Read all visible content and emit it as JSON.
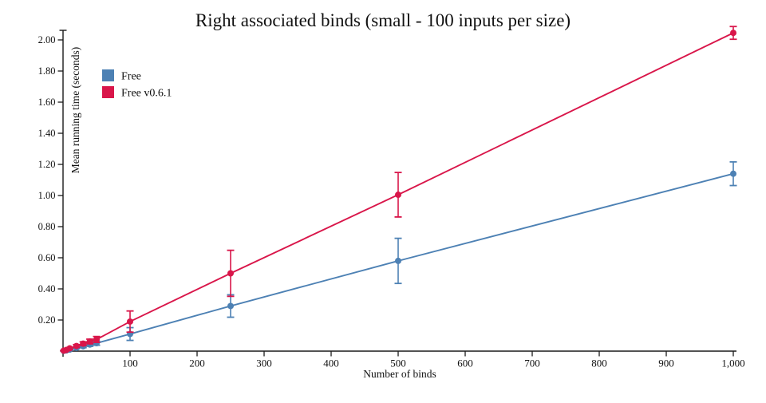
{
  "title": "Right associated binds (small - 100 inputs per size)",
  "colors": {
    "axis": "#1a1a1a",
    "background": "#ffffff",
    "series_free": "#4d81b4",
    "series_free_v061": "#d9164a"
  },
  "legend": {
    "items": [
      {
        "label": "Free",
        "color": "#4d81b4"
      },
      {
        "label": "Free v0.6.1",
        "color": "#d9164a"
      }
    ]
  },
  "chart_data": {
    "type": "line",
    "title": "Right associated binds (small - 100 inputs per size)",
    "xlabel": "Number of binds",
    "ylabel": "Mean running time (seconds)",
    "xlim": [
      0,
      1000
    ],
    "ylim": [
      0,
      2.06
    ],
    "grid": false,
    "legend_position": "top-left-inside",
    "x_ticks": [
      100,
      200,
      300,
      400,
      500,
      600,
      700,
      800,
      900,
      1000
    ],
    "x_tick_labels": [
      "100",
      "200",
      "300",
      "400",
      "500",
      "600",
      "700",
      "800",
      "900",
      "1,000"
    ],
    "y_ticks": [
      0.2,
      0.4,
      0.6,
      0.8,
      1.0,
      1.2,
      1.4,
      1.6,
      1.8,
      2.0
    ],
    "y_tick_labels": [
      "0.20",
      "0.40",
      "0.60",
      "0.80",
      "1.00",
      "1.20",
      "1.40",
      "1.60",
      "1.80",
      "2.00"
    ],
    "x": [
      1,
      5,
      10,
      20,
      30,
      40,
      50,
      100,
      250,
      500,
      1000
    ],
    "series": [
      {
        "name": "Free",
        "color": "#4d81b4",
        "marker": "circle",
        "values": [
          0.002,
          0.005,
          0.01,
          0.021,
          0.031,
          0.042,
          0.051,
          0.11,
          0.29,
          0.58,
          1.14
        ],
        "error": [
          0.001,
          0.002,
          0.004,
          0.006,
          0.009,
          0.011,
          0.013,
          0.041,
          0.072,
          0.145,
          0.076
        ]
      },
      {
        "name": "Free v0.6.1",
        "color": "#d9164a",
        "marker": "circle",
        "values": [
          0.003,
          0.008,
          0.018,
          0.033,
          0.048,
          0.062,
          0.075,
          0.19,
          0.5,
          1.005,
          2.045
        ],
        "error": [
          0.002,
          0.004,
          0.006,
          0.009,
          0.012,
          0.015,
          0.019,
          0.068,
          0.148,
          0.143,
          0.041
        ]
      }
    ]
  }
}
